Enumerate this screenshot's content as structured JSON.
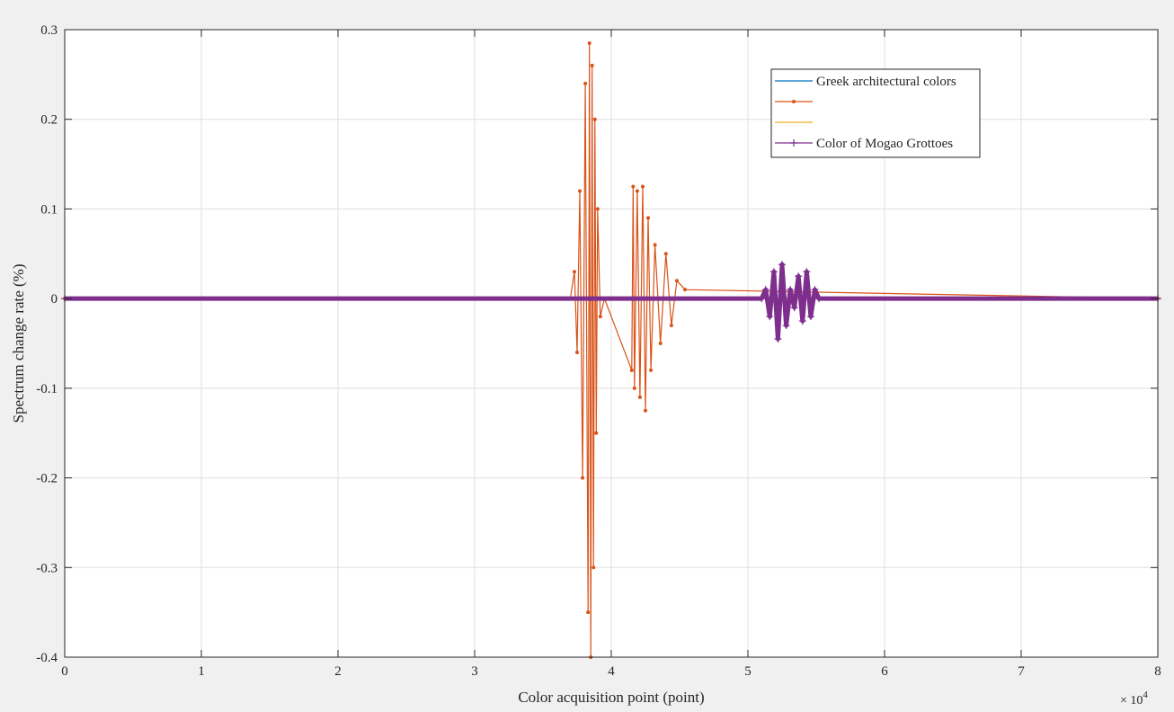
{
  "window": {
    "background": "#f0f0f0"
  },
  "chart_data": {
    "type": "line",
    "title": "",
    "xlabel": "Color acquisition point (point)",
    "ylabel": "Spectrum change rate (%)",
    "x_exponent_label": "× 10",
    "x_exponent_power": "4",
    "xlim": [
      0,
      80000
    ],
    "ylim": [
      -0.4,
      0.3
    ],
    "x_ticks": [
      0,
      10000,
      20000,
      30000,
      40000,
      50000,
      60000,
      70000,
      80000
    ],
    "x_tick_labels": [
      "0",
      "1",
      "2",
      "3",
      "4",
      "5",
      "6",
      "7",
      "8"
    ],
    "y_ticks": [
      -0.4,
      -0.3,
      -0.2,
      -0.1,
      0,
      0.1,
      0.2,
      0.3
    ],
    "y_tick_labels": [
      "-0.4",
      "-0.3",
      "-0.2",
      "-0.1",
      "0",
      "0.1",
      "0.2",
      "0.3"
    ],
    "grid": true,
    "legend_position": "top-right",
    "series": [
      {
        "name": "Greek architectural colors",
        "color": "#0072bd",
        "marker": "none",
        "x": [
          0,
          80000
        ],
        "y": [
          0,
          0
        ]
      },
      {
        "name": "",
        "color": "#d95319",
        "marker": "dot",
        "x": [
          0,
          37000,
          37300,
          37500,
          37700,
          37900,
          38100,
          38300,
          38400,
          38500,
          38600,
          38700,
          38800,
          38900,
          39000,
          39200,
          39500,
          41500,
          41600,
          41700,
          41900,
          42100,
          42300,
          42500,
          42700,
          42900,
          43200,
          43600,
          44000,
          44400,
          44800,
          45400,
          80000
        ],
        "y": [
          0,
          0,
          0.03,
          -0.06,
          0.12,
          -0.2,
          0.24,
          -0.35,
          0.285,
          -0.4,
          0.26,
          -0.3,
          0.2,
          -0.15,
          0.1,
          -0.02,
          0,
          -0.08,
          0.125,
          -0.1,
          0.12,
          -0.11,
          0.125,
          -0.125,
          0.09,
          -0.08,
          0.06,
          -0.05,
          0.05,
          -0.03,
          0.02,
          0.01,
          0
        ]
      },
      {
        "name": "",
        "color": "#edb120",
        "marker": "none",
        "x": [
          0,
          80000
        ],
        "y": [
          0,
          0
        ]
      },
      {
        "name": "Color of Mogao Grottoes",
        "color": "#7e2f8e",
        "marker": "plus",
        "x": [
          0,
          51000,
          51300,
          51600,
          51900,
          52200,
          52500,
          52800,
          53100,
          53400,
          53700,
          54000,
          54300,
          54600,
          54900,
          55200,
          80000
        ],
        "y": [
          0,
          0,
          0.01,
          -0.02,
          0.03,
          -0.045,
          0.038,
          -0.03,
          0.01,
          -0.01,
          0.025,
          -0.025,
          0.03,
          -0.02,
          0.01,
          0,
          0
        ]
      }
    ]
  }
}
